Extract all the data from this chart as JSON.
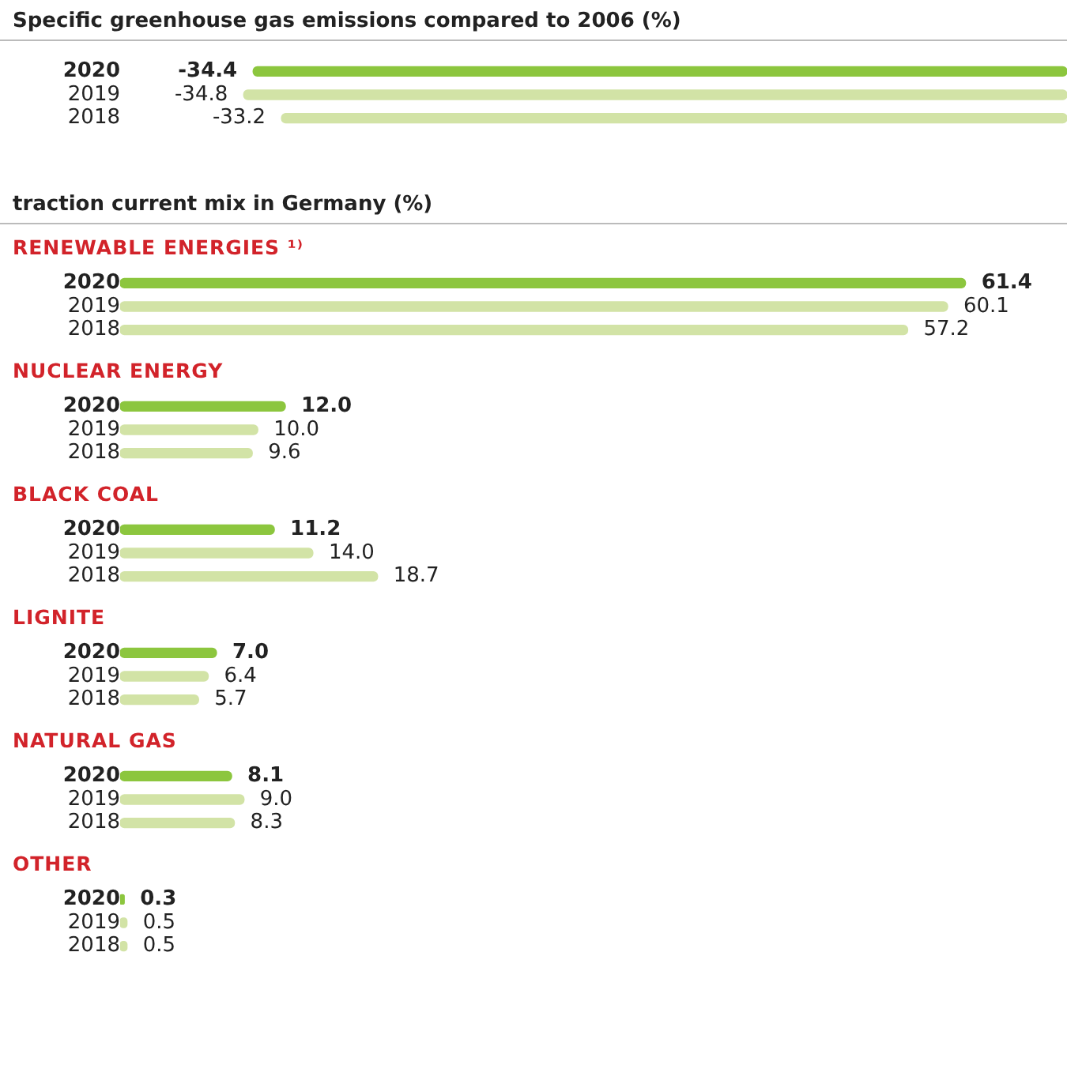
{
  "chart_data": [
    {
      "type": "bar",
      "orientation": "horizontal",
      "title": "Specific greenhouse gas emissions compared to 2006 (%)",
      "categories": [
        "2020",
        "2019",
        "2018"
      ],
      "values": [
        -34.4,
        -34.8,
        -33.2
      ],
      "value_labels": [
        "-34.4",
        "-34.8",
        "-33.2"
      ],
      "colors": [
        "#8cc63e",
        "#d2e3a6",
        "#d2e3a6"
      ],
      "tick_labels": "y"
    },
    {
      "type": "bar",
      "orientation": "horizontal",
      "title": "traction current mix in Germany (%)",
      "subtitle": "RENEWABLE ENERGIES ¹⁾",
      "categories": [
        "2020",
        "2019",
        "2018"
      ],
      "values": [
        61.4,
        60.1,
        57.2
      ],
      "value_labels": [
        "61.4",
        "60.1",
        "57.2"
      ],
      "colors": [
        "#8cc63e",
        "#d2e3a6",
        "#d2e3a6"
      ],
      "tick_labels": "y"
    },
    {
      "type": "bar",
      "orientation": "horizontal",
      "title": "NUCLEAR ENERGY",
      "categories": [
        "2020",
        "2019",
        "2018"
      ],
      "values": [
        12.0,
        10.0,
        9.6
      ],
      "value_labels": [
        "12.0",
        "10.0",
        "9.6"
      ],
      "colors": [
        "#8cc63e",
        "#d2e3a6",
        "#d2e3a6"
      ],
      "tick_labels": "y"
    },
    {
      "type": "bar",
      "orientation": "horizontal",
      "title": "BLACK COAL",
      "categories": [
        "2020",
        "2019",
        "2018"
      ],
      "values": [
        11.2,
        14.0,
        18.7
      ],
      "value_labels": [
        "11.2",
        "14.0",
        "18.7"
      ],
      "colors": [
        "#8cc63e",
        "#d2e3a6",
        "#d2e3a6"
      ],
      "tick_labels": "y"
    },
    {
      "type": "bar",
      "orientation": "horizontal",
      "title": "LIGNITE",
      "categories": [
        "2020",
        "2019",
        "2018"
      ],
      "values": [
        7.0,
        6.4,
        5.7
      ],
      "value_labels": [
        "7.0",
        "6.4",
        "5.7"
      ],
      "colors": [
        "#8cc63e",
        "#d2e3a6",
        "#d2e3a6"
      ],
      "tick_labels": "y"
    },
    {
      "type": "bar",
      "orientation": "horizontal",
      "title": "NATURAL GAS",
      "categories": [
        "2020",
        "2019",
        "2018"
      ],
      "values": [
        8.1,
        9.0,
        8.3
      ],
      "value_labels": [
        "8.1",
        "9.0",
        "8.3"
      ],
      "colors": [
        "#8cc63e",
        "#d2e3a6",
        "#d2e3a6"
      ],
      "tick_labels": "y"
    },
    {
      "type": "bar",
      "orientation": "horizontal",
      "title": "OTHER",
      "categories": [
        "2020",
        "2019",
        "2018"
      ],
      "values": [
        0.3,
        0.5,
        0.5
      ],
      "value_labels": [
        "0.3",
        "0.5",
        "0.5"
      ],
      "colors": [
        "#8cc63e",
        "#d2e3a6",
        "#d2e3a6"
      ],
      "tick_labels": "y"
    }
  ]
}
